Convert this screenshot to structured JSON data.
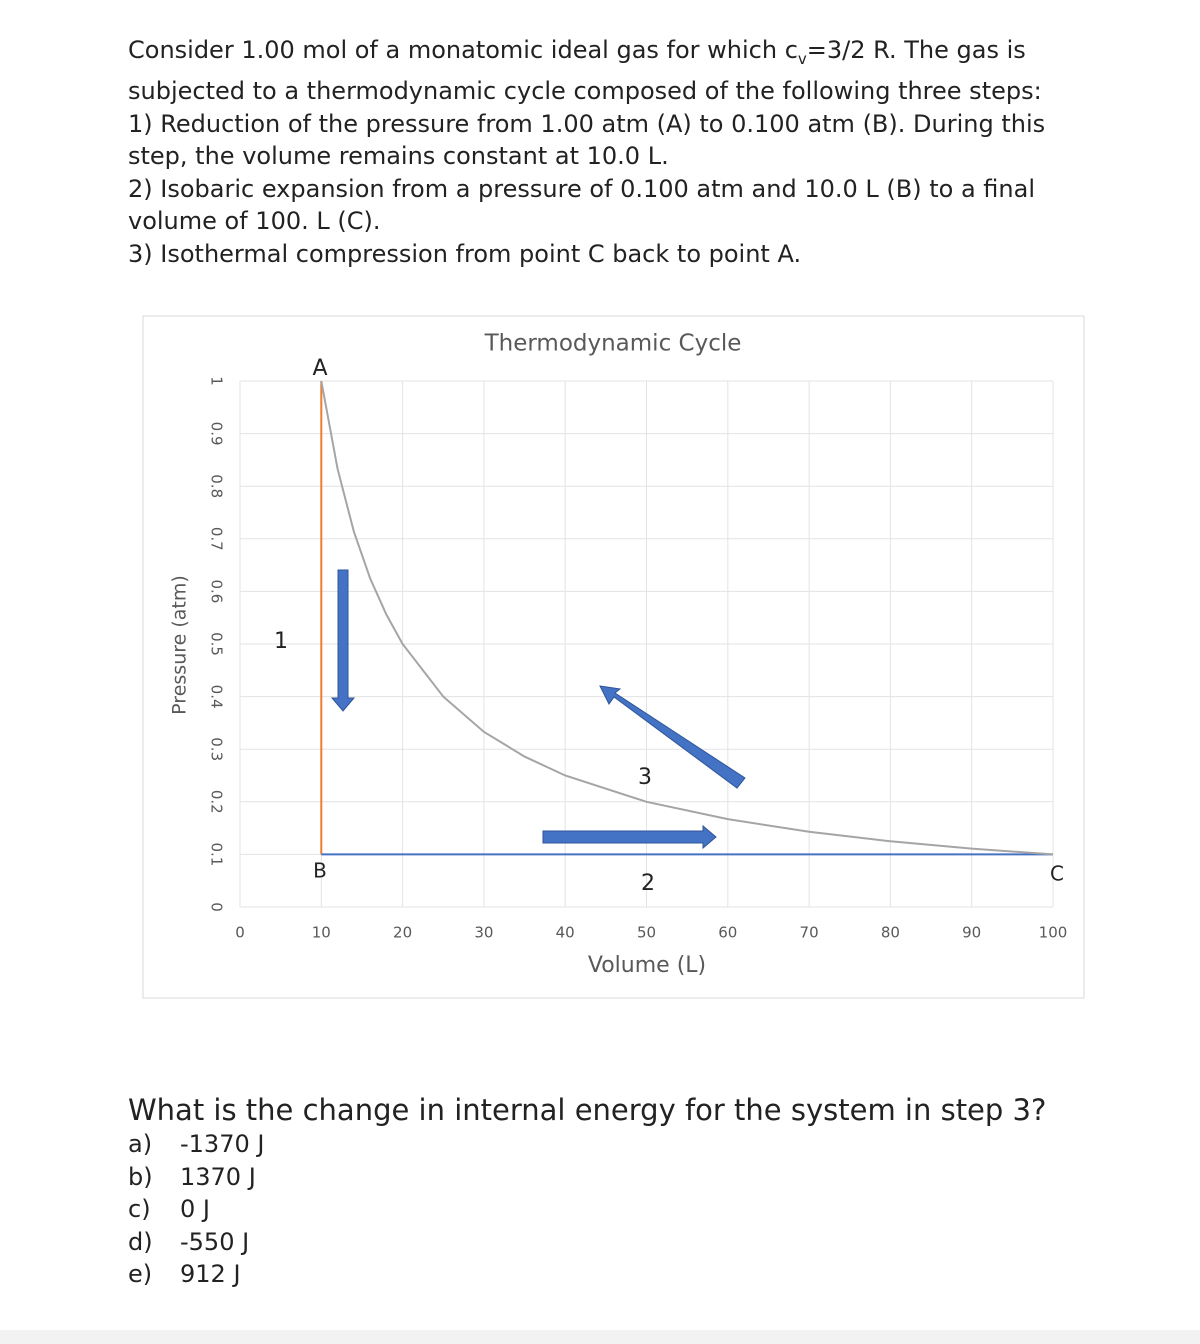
{
  "problem": {
    "intro": {
      "before": "Consider 1.00 mol of a monatomic ideal gas for which c",
      "sub": "v",
      "after": "=3/2 R. The gas is subjected to a thermodynamic cycle composed of the following three steps:"
    },
    "steps": [
      "1) Reduction of the pressure from 1.00 atm (A) to 0.100 atm (B). During this step, the volume remains constant at 10.0 L.",
      "2) Isobaric expansion from a pressure of 0.100 atm and 10.0 L (B) to a final volume of 100. L (C).",
      "3) Isothermal compression from point C back to point A."
    ],
    "question": "What is the change in internal energy for the system in step 3?",
    "options": [
      {
        "letter": "a)",
        "text": "-1370 J"
      },
      {
        "letter": "b)",
        "text": "1370 J"
      },
      {
        "letter": "c)",
        "text": "0 J"
      },
      {
        "letter": "d)",
        "text": "-550 J"
      },
      {
        "letter": "e)",
        "text": "912 J"
      }
    ]
  },
  "chart_data": {
    "type": "line",
    "title": "Thermodynamic Cycle",
    "x_label": "Volume (L)",
    "y_label": "Pressure (atm)",
    "xlim": [
      0,
      100
    ],
    "xticks": [
      0,
      10,
      20,
      30,
      40,
      50,
      60,
      70,
      80,
      90,
      100
    ],
    "ylim": [
      0,
      1
    ],
    "yticks": [
      0,
      0.1,
      0.2,
      0.3,
      0.4,
      0.5,
      0.6,
      0.7,
      0.8,
      0.9,
      1
    ],
    "grid": true,
    "series": [
      {
        "color": "#ed7d31",
        "x": [
          10,
          10
        ],
        "values": [
          1,
          0.1
        ]
      },
      {
        "color": "#4472c4",
        "x": [
          10,
          100
        ],
        "values": [
          0.1,
          0.1
        ]
      },
      {
        "color": "#a5a5a5",
        "x": [
          10,
          12,
          14,
          16,
          18,
          20,
          25,
          30,
          35,
          40,
          50,
          60,
          70,
          80,
          90,
          100
        ],
        "values": [
          1,
          0.833,
          0.714,
          0.625,
          0.556,
          0.5,
          0.4,
          0.333,
          0.286,
          0.25,
          0.2,
          0.167,
          0.143,
          0.125,
          0.111,
          0.1
        ]
      }
    ],
    "annotations": [
      "A",
      "B",
      "C",
      "1",
      "2",
      "3"
    ]
  }
}
